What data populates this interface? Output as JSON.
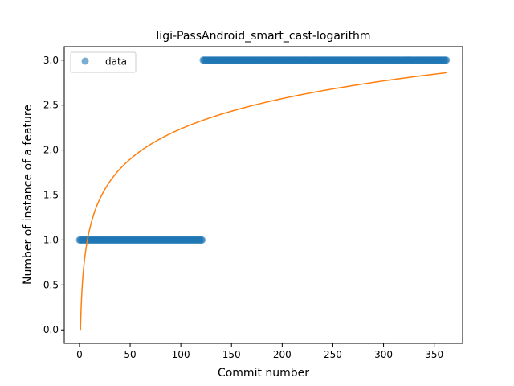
{
  "chart_data": {
    "type": "scatter",
    "title": "ligi-PassAndroid_smart_cast-logarithm",
    "xlabel": "Commit number",
    "ylabel": "Number of instance of a feature",
    "xlim": [
      -15,
      378
    ],
    "ylim": [
      -0.15,
      3.15
    ],
    "xticks": [
      0,
      50,
      100,
      150,
      200,
      250,
      300,
      350
    ],
    "xtick_labels": [
      "0",
      "50",
      "100",
      "150",
      "200",
      "250",
      "300",
      "350"
    ],
    "yticks": [
      0.0,
      0.5,
      1.0,
      1.5,
      2.0,
      2.5,
      3.0
    ],
    "ytick_labels": [
      "0.0",
      "0.5",
      "1.0",
      "1.5",
      "2.0",
      "2.5",
      "3.0"
    ],
    "legend": {
      "position": "top-left",
      "entries": [
        "data"
      ]
    },
    "series": [
      {
        "name": "data",
        "kind": "scatter",
        "color": "#1f77b4",
        "alpha": 0.6,
        "segments": [
          {
            "x_start": 0,
            "x_end": 121,
            "y": 1.0
          },
          {
            "x_start": 122,
            "x_end": 362,
            "y": 3.0
          }
        ]
      },
      {
        "kind": "line",
        "color": "#ff7f0e",
        "fit": "logarithmic",
        "x_range": [
          1,
          362
        ],
        "y_at_start": 0.0,
        "y_at_end": 2.86
      }
    ]
  }
}
